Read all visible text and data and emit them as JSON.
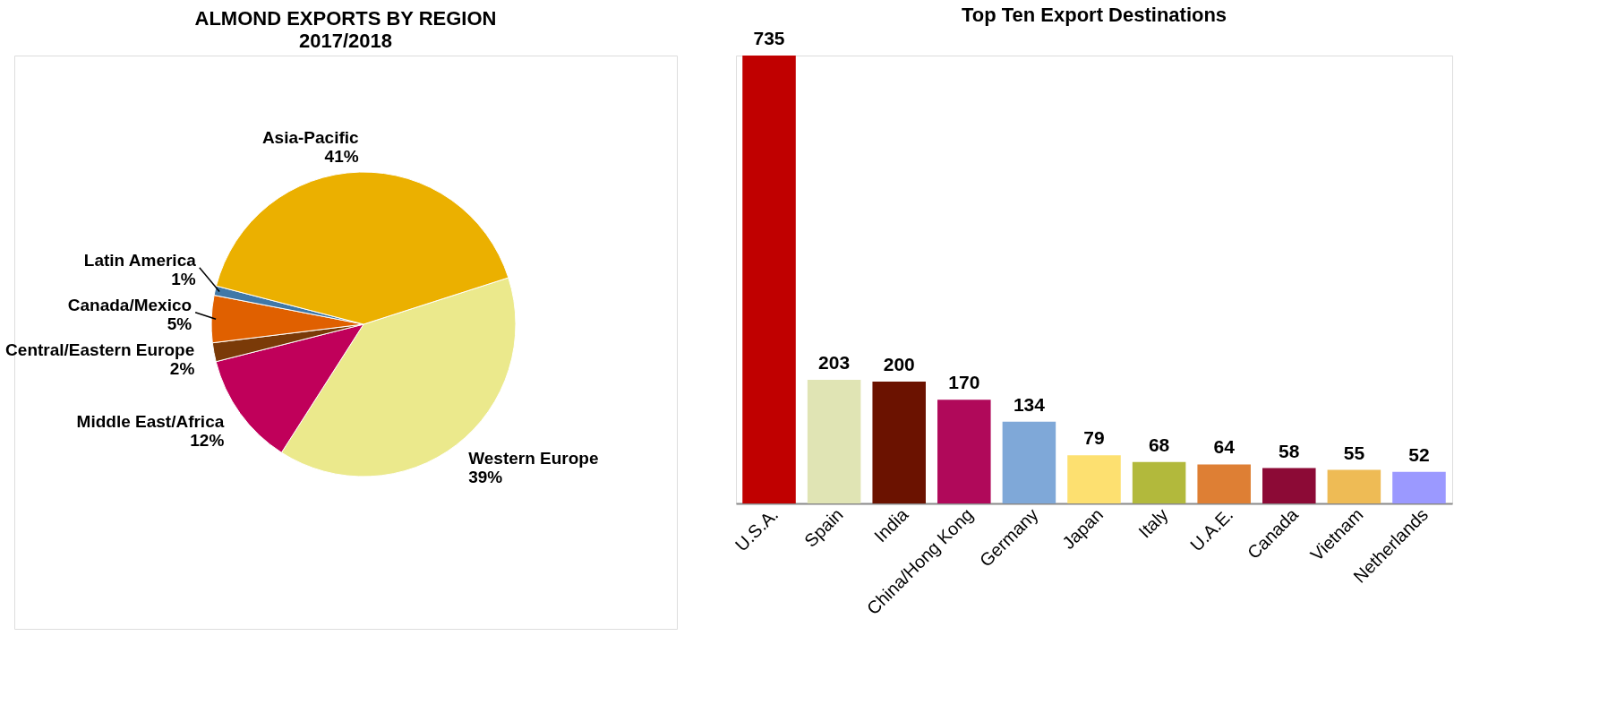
{
  "chart_data": [
    {
      "type": "pie",
      "title": "ALMOND EXPORTS BY REGION",
      "subtitle": "2017/2018",
      "categories": [
        "Western Europe",
        "Middle East/Africa",
        "Central/Eastern Europe",
        "Canada/Mexico",
        "Latin America",
        "Asia-Pacific"
      ],
      "values": [
        39,
        12,
        2,
        5,
        1,
        41
      ],
      "value_labels": [
        "39%",
        "12%",
        "2%",
        "5%",
        "1%",
        "41%"
      ],
      "colors": [
        "#ebe98c",
        "#c0005a",
        "#7a3a08",
        "#e06000",
        "#3f78a8",
        "#ebb000"
      ]
    },
    {
      "type": "bar",
      "title": "Top Ten Export Destinations",
      "categories": [
        "U.S.A.",
        "Spain",
        "India",
        "China/Hong Kong",
        "Germany",
        "Japan",
        "Italy",
        "U.A.E.",
        "Canada",
        "Vietnam",
        "Netherlands"
      ],
      "values": [
        735,
        203,
        200,
        170,
        134,
        79,
        68,
        64,
        58,
        55,
        52
      ],
      "colors": [
        "#c00000",
        "#e0e4b4",
        "#6b1200",
        "#b0095a",
        "#7fa8d8",
        "#fde070",
        "#b2b93c",
        "#de7f34",
        "#8c0a36",
        "#eebb55",
        "#9b99ff"
      ],
      "data_labels": true
    }
  ]
}
